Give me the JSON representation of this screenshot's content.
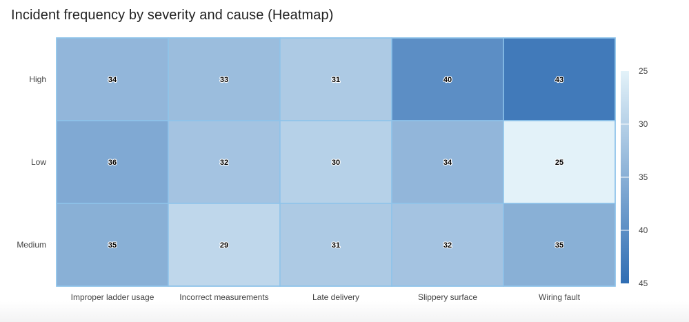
{
  "chart_data": {
    "type": "heatmap",
    "title": "Incident frequency by severity and cause (Heatmap)",
    "x_categories": [
      "Improper ladder usage",
      "Incorrect measurements",
      "Late delivery",
      "Slippery surface",
      "Wiring fault"
    ],
    "y_categories": [
      "High",
      "Low",
      "Medium"
    ],
    "values": [
      [
        34,
        33,
        31,
        40,
        43
      ],
      [
        36,
        32,
        30,
        34,
        25
      ],
      [
        35,
        29,
        31,
        32,
        35
      ]
    ],
    "color_scale": {
      "min": 25,
      "max": 45,
      "ticks": [
        25,
        30,
        35,
        40,
        45
      ],
      "low_color": "#e3f2f9",
      "high_color": "#2f6db3",
      "reversed": true
    },
    "grid_line_color": "#8ec3ea",
    "legend": "right"
  }
}
